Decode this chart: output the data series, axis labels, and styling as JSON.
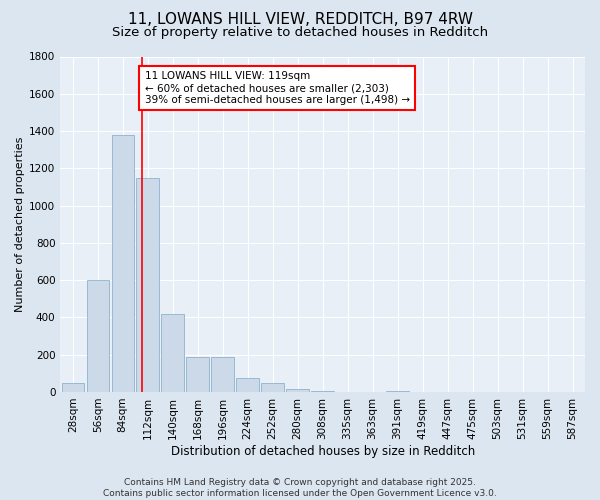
{
  "title": "11, LOWANS HILL VIEW, REDDITCH, B97 4RW",
  "subtitle": "Size of property relative to detached houses in Redditch",
  "xlabel": "Distribution of detached houses by size in Redditch",
  "ylabel": "Number of detached properties",
  "categories": [
    "28sqm",
    "56sqm",
    "84sqm",
    "112sqm",
    "140sqm",
    "168sqm",
    "196sqm",
    "224sqm",
    "252sqm",
    "280sqm",
    "308sqm",
    "335sqm",
    "363sqm",
    "391sqm",
    "419sqm",
    "447sqm",
    "475sqm",
    "503sqm",
    "531sqm",
    "559sqm",
    "587sqm"
  ],
  "values": [
    50,
    600,
    1380,
    1150,
    420,
    185,
    185,
    75,
    50,
    15,
    5,
    0,
    0,
    3,
    0,
    0,
    0,
    0,
    0,
    0,
    0
  ],
  "bar_color": "#ccd9e8",
  "bar_edge_color": "#7fa8c8",
  "vline_color": "red",
  "annotation_text": "11 LOWANS HILL VIEW: 119sqm\n← 60% of detached houses are smaller (2,303)\n39% of semi-detached houses are larger (1,498) →",
  "annotation_box_color": "white",
  "annotation_box_edge_color": "red",
  "ylim": [
    0,
    1800
  ],
  "yticks": [
    0,
    200,
    400,
    600,
    800,
    1000,
    1200,
    1400,
    1600,
    1800
  ],
  "bg_color": "#dce6f0",
  "plot_bg_color": "#e8eff6",
  "grid_color": "white",
  "footer_text": "Contains HM Land Registry data © Crown copyright and database right 2025.\nContains public sector information licensed under the Open Government Licence v3.0.",
  "title_fontsize": 11,
  "subtitle_fontsize": 9.5,
  "xlabel_fontsize": 8.5,
  "ylabel_fontsize": 8,
  "tick_fontsize": 7.5,
  "annotation_fontsize": 7.5,
  "footer_fontsize": 6.5
}
